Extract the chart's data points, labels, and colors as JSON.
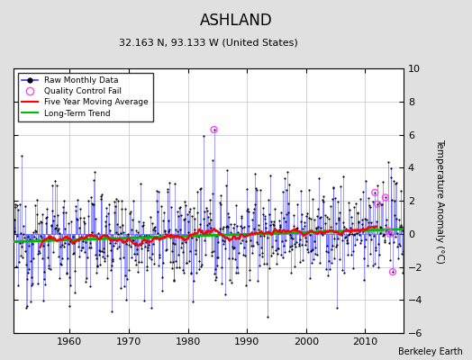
{
  "title": "ASHLAND",
  "subtitle": "32.163 N, 93.133 W (United States)",
  "ylabel": "Temperature Anomaly (°C)",
  "xlim": [
    1950.5,
    2016.5
  ],
  "ylim": [
    -6,
    10
  ],
  "yticks": [
    -6,
    -4,
    -2,
    0,
    2,
    4,
    6,
    8,
    10
  ],
  "xticks": [
    1960,
    1970,
    1980,
    1990,
    2000,
    2010
  ],
  "start_year": 1950,
  "end_year": 2016,
  "raw_color": "#3333FF",
  "ma_color": "#FF0000",
  "trend_color": "#00BB00",
  "qc_color": "#FF44FF",
  "background_color": "#E0E0E0",
  "plot_bg_color": "#FFFFFF",
  "grid_color": "#CCCCCC",
  "watermark": "Berkeley Earth",
  "seed": 12345
}
